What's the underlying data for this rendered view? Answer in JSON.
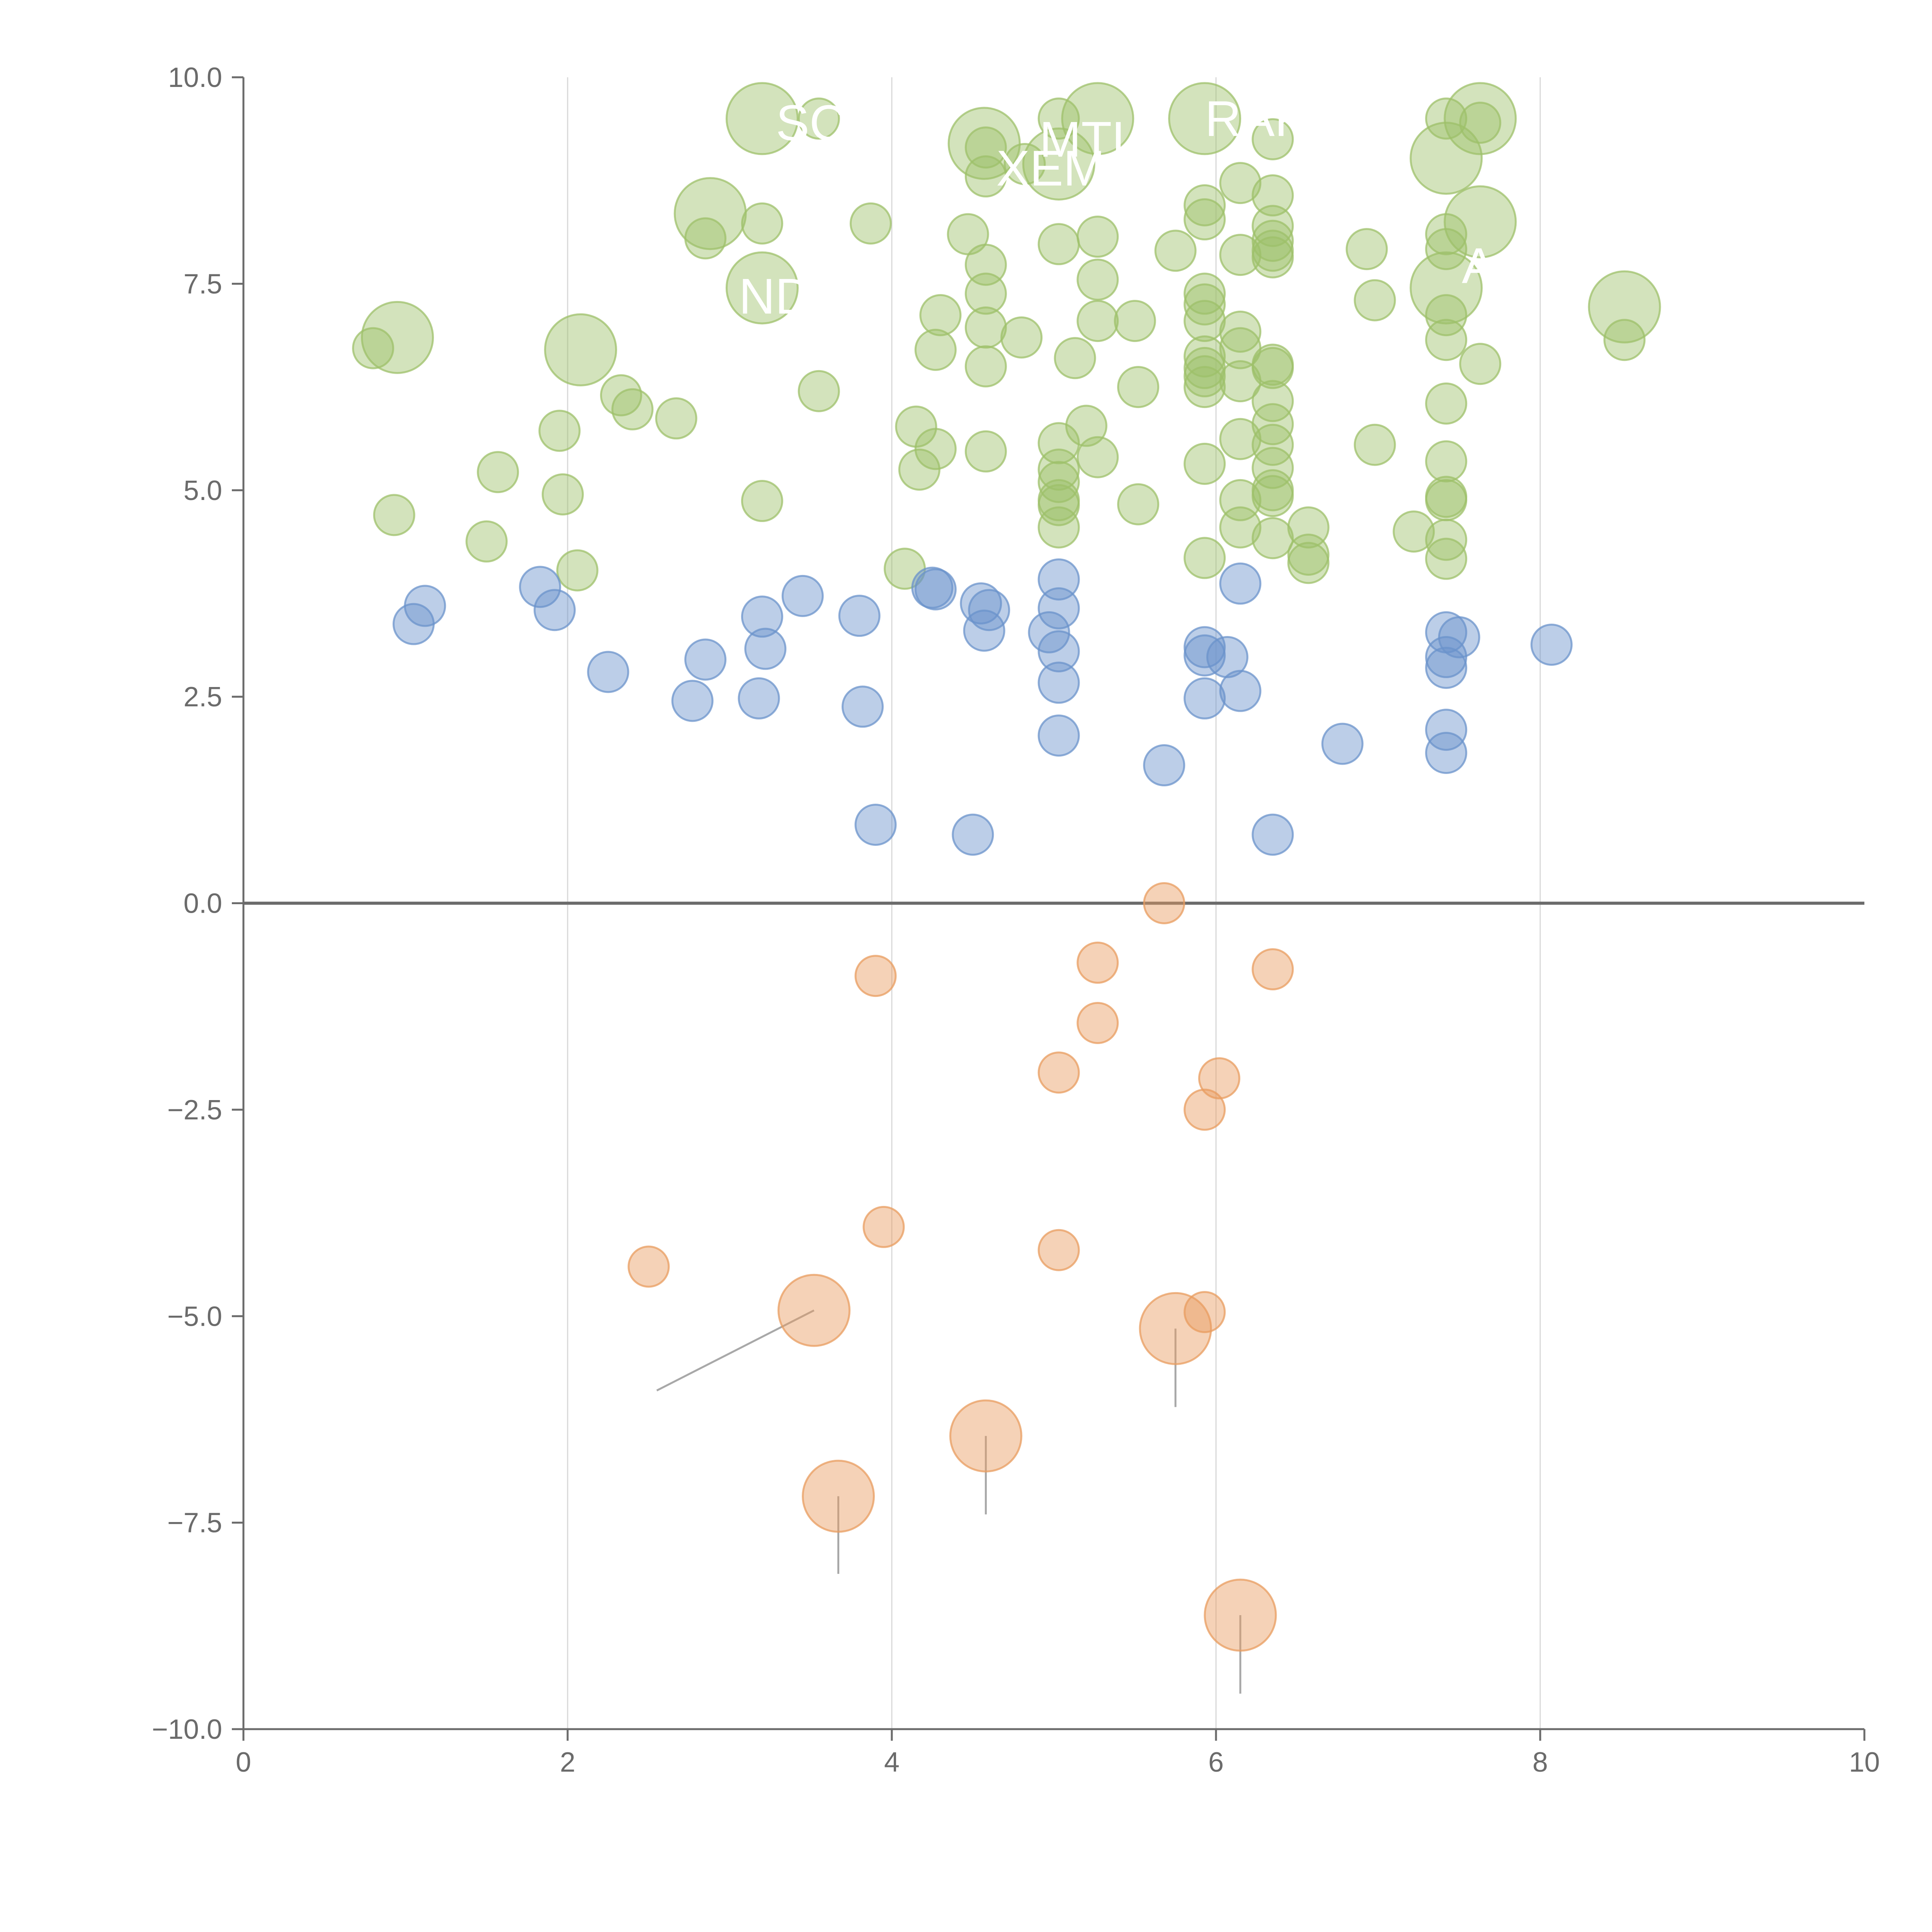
{
  "chart_data": {
    "type": "scatter",
    "title": "",
    "xlabel": "",
    "ylabel": "",
    "xlim": [
      0,
      10
    ],
    "ylim": [
      -10,
      10
    ],
    "x_ticks": [
      0,
      2,
      4,
      6,
      8,
      10
    ],
    "y_ticks": [
      -10.0,
      -7.5,
      -5.0,
      -2.5,
      0.0,
      2.5,
      5.0,
      7.5,
      10.0
    ],
    "x_tick_labels": [
      "0",
      "2",
      "4",
      "6",
      "8",
      "10"
    ],
    "y_tick_labels": [
      "−10.0",
      "−7.5",
      "−5.0",
      "−2.5",
      "0.0",
      "2.5",
      "5.0",
      "7.5",
      "10.0"
    ],
    "vertical_grid": [
      2,
      4,
      6,
      8
    ],
    "horizontal_reference_line": 0,
    "colors": {
      "green": "#9dc06a",
      "blue": "#6b93cb",
      "orange": "#e89c5f",
      "axis": "#6b6b6b",
      "grid": "#d8d8d8"
    },
    "series": [
      {
        "color": "green",
        "points": [
          [
            0.95,
            6.85,
            2
          ],
          [
            0.8,
            6.72,
            1
          ],
          [
            2.08,
            6.7,
            2
          ],
          [
            0.93,
            4.7,
            1
          ],
          [
            1.5,
            4.38,
            1
          ],
          [
            1.57,
            5.22,
            1
          ],
          [
            1.97,
            4.95,
            1
          ],
          [
            1.95,
            5.72,
            1
          ],
          [
            2.06,
            4.03,
            1
          ],
          [
            2.33,
            6.15,
            1
          ],
          [
            2.4,
            5.98,
            1
          ],
          [
            2.67,
            5.87,
            1
          ],
          [
            2.88,
            8.35,
            2
          ],
          [
            2.85,
            8.05,
            1
          ],
          [
            3.2,
            9.5,
            2
          ],
          [
            3.2,
            8.23,
            1
          ],
          [
            3.2,
            7.45,
            2
          ],
          [
            3.2,
            4.87,
            1
          ],
          [
            3.55,
            6.2,
            1
          ],
          [
            3.55,
            9.5,
            1
          ],
          [
            3.87,
            8.23,
            1
          ],
          [
            4.08,
            4.05,
            1
          ],
          [
            4.15,
            5.77,
            1
          ],
          [
            4.17,
            5.25,
            1
          ],
          [
            4.27,
            5.5,
            1
          ],
          [
            4.27,
            6.7,
            1
          ],
          [
            4.3,
            7.12,
            1
          ],
          [
            4.47,
            8.1,
            1
          ],
          [
            4.57,
            9.2,
            2
          ],
          [
            4.58,
            8.8,
            1
          ],
          [
            4.58,
            7.73,
            1
          ],
          [
            4.58,
            7.38,
            1
          ],
          [
            4.58,
            6.97,
            1
          ],
          [
            4.58,
            6.5,
            1
          ],
          [
            4.58,
            5.47,
            1
          ],
          [
            4.58,
            9.15,
            1
          ],
          [
            4.8,
            6.85,
            1
          ],
          [
            4.82,
            8.95,
            1
          ],
          [
            5.03,
            8.95,
            2
          ],
          [
            5.03,
            9.5,
            1
          ],
          [
            5.03,
            7.98,
            1
          ],
          [
            5.03,
            5.57,
            1
          ],
          [
            5.03,
            5.25,
            1
          ],
          [
            5.03,
            5.1,
            1
          ],
          [
            5.03,
            4.88,
            1
          ],
          [
            5.03,
            4.55,
            1
          ],
          [
            5.03,
            4.82,
            1
          ],
          [
            5.13,
            6.6,
            1
          ],
          [
            5.2,
            5.78,
            1
          ],
          [
            5.27,
            9.5,
            2
          ],
          [
            5.27,
            8.07,
            1
          ],
          [
            5.27,
            7.55,
            1
          ],
          [
            5.27,
            7.05,
            1
          ],
          [
            5.27,
            5.4,
            1
          ],
          [
            5.5,
            7.05,
            1
          ],
          [
            5.52,
            6.25,
            1
          ],
          [
            5.52,
            4.83,
            1
          ],
          [
            5.75,
            7.9,
            1
          ],
          [
            5.93,
            9.5,
            2
          ],
          [
            5.93,
            8.45,
            1
          ],
          [
            5.93,
            8.28,
            1
          ],
          [
            5.93,
            7.38,
            1
          ],
          [
            5.93,
            7.25,
            1
          ],
          [
            5.93,
            7.05,
            1
          ],
          [
            5.93,
            6.62,
            1
          ],
          [
            5.93,
            6.48,
            1
          ],
          [
            5.93,
            6.38,
            1
          ],
          [
            5.93,
            6.25,
            1
          ],
          [
            5.93,
            5.32,
            1
          ],
          [
            5.93,
            4.18,
            1
          ],
          [
            6.15,
            8.72,
            1
          ],
          [
            6.15,
            7.85,
            1
          ],
          [
            6.15,
            6.92,
            1
          ],
          [
            6.15,
            6.72,
            1
          ],
          [
            6.15,
            6.32,
            1
          ],
          [
            6.15,
            5.62,
            1
          ],
          [
            6.15,
            4.88,
            1
          ],
          [
            6.15,
            4.55,
            1
          ],
          [
            6.35,
            9.25,
            1
          ],
          [
            6.35,
            8.57,
            1
          ],
          [
            6.35,
            8.2,
            1
          ],
          [
            6.35,
            8.02,
            1
          ],
          [
            6.35,
            7.9,
            1
          ],
          [
            6.35,
            7.82,
            1
          ],
          [
            6.35,
            6.52,
            1
          ],
          [
            6.35,
            6.48,
            1
          ],
          [
            6.35,
            6.08,
            1
          ],
          [
            6.35,
            5.8,
            1
          ],
          [
            6.35,
            5.55,
            1
          ],
          [
            6.35,
            5.27,
            1
          ],
          [
            6.35,
            5.0,
            1
          ],
          [
            6.35,
            4.93,
            1
          ],
          [
            6.35,
            4.42,
            1
          ],
          [
            6.57,
            4.55,
            1
          ],
          [
            6.57,
            4.22,
            1
          ],
          [
            6.57,
            4.12,
            1
          ],
          [
            6.93,
            7.92,
            1
          ],
          [
            6.98,
            7.3,
            1
          ],
          [
            6.98,
            5.55,
            1
          ],
          [
            7.22,
            4.5,
            1
          ],
          [
            7.42,
            9.5,
            1
          ],
          [
            7.42,
            9.02,
            2
          ],
          [
            7.42,
            8.1,
            1
          ],
          [
            7.42,
            7.92,
            1
          ],
          [
            7.42,
            7.45,
            2
          ],
          [
            7.42,
            7.12,
            1
          ],
          [
            7.42,
            6.82,
            1
          ],
          [
            7.42,
            6.05,
            1
          ],
          [
            7.42,
            5.35,
            1
          ],
          [
            7.42,
            4.92,
            1
          ],
          [
            7.42,
            4.88,
            1
          ],
          [
            7.42,
            4.4,
            1
          ],
          [
            7.42,
            4.17,
            1
          ],
          [
            7.63,
            9.5,
            2
          ],
          [
            7.63,
            9.45,
            1
          ],
          [
            7.63,
            8.25,
            2
          ],
          [
            7.63,
            6.53,
            1
          ],
          [
            8.52,
            7.22,
            2
          ],
          [
            8.52,
            6.82,
            1
          ]
        ]
      },
      {
        "color": "blue",
        "points": [
          [
            1.05,
            3.38,
            1
          ],
          [
            1.12,
            3.6,
            1
          ],
          [
            1.83,
            3.83,
            1
          ],
          [
            1.92,
            3.55,
            1
          ],
          [
            2.25,
            2.8,
            1
          ],
          [
            2.77,
            2.45,
            1
          ],
          [
            2.85,
            2.95,
            1
          ],
          [
            3.18,
            2.48,
            1
          ],
          [
            3.2,
            3.47,
            1
          ],
          [
            3.22,
            3.08,
            1
          ],
          [
            3.45,
            3.72,
            1
          ],
          [
            3.8,
            3.48,
            1
          ],
          [
            3.82,
            2.38,
            1
          ],
          [
            3.9,
            0.95,
            1
          ],
          [
            4.25,
            3.82,
            1
          ],
          [
            4.27,
            3.8,
            1
          ],
          [
            4.5,
            0.83,
            1
          ],
          [
            4.55,
            3.63,
            1
          ],
          [
            4.57,
            3.3,
            1
          ],
          [
            4.6,
            3.55,
            1
          ],
          [
            4.97,
            3.28,
            1
          ],
          [
            5.03,
            3.92,
            1
          ],
          [
            5.03,
            3.57,
            1
          ],
          [
            5.03,
            3.05,
            1
          ],
          [
            5.03,
            2.67,
            1
          ],
          [
            5.03,
            2.03,
            1
          ],
          [
            5.68,
            1.67,
            1
          ],
          [
            5.93,
            3.1,
            1
          ],
          [
            5.93,
            3.0,
            1
          ],
          [
            5.93,
            2.48,
            1
          ],
          [
            6.07,
            2.98,
            1
          ],
          [
            6.15,
            3.87,
            1
          ],
          [
            6.15,
            2.57,
            1
          ],
          [
            6.35,
            0.83,
            1
          ],
          [
            6.78,
            1.93,
            1
          ],
          [
            7.42,
            3.28,
            1
          ],
          [
            7.42,
            2.98,
            1
          ],
          [
            7.42,
            2.85,
            1
          ],
          [
            7.42,
            2.1,
            1
          ],
          [
            7.42,
            1.82,
            1
          ],
          [
            7.5,
            3.22,
            1
          ],
          [
            8.07,
            3.13,
            1
          ]
        ]
      },
      {
        "color": "orange",
        "points": [
          [
            2.5,
            -4.4,
            1
          ],
          [
            3.52,
            -4.93,
            2
          ],
          [
            3.67,
            -7.18,
            2
          ],
          [
            3.9,
            -0.88,
            1
          ],
          [
            3.95,
            -3.92,
            1
          ],
          [
            4.58,
            -6.45,
            2
          ],
          [
            5.03,
            -2.05,
            1
          ],
          [
            5.03,
            -4.2,
            1
          ],
          [
            5.27,
            -0.72,
            1
          ],
          [
            5.27,
            -1.45,
            1
          ],
          [
            5.68,
            0.0,
            1
          ],
          [
            5.75,
            -5.15,
            2
          ],
          [
            5.93,
            -2.5,
            1
          ],
          [
            5.93,
            -4.95,
            1
          ],
          [
            6.02,
            -2.12,
            1
          ],
          [
            6.15,
            -8.62,
            2
          ],
          [
            6.35,
            -0.8,
            1
          ]
        ]
      }
    ],
    "annotations": [
      {
        "text": "SC",
        "x": 3.5,
        "y": 9.45
      },
      {
        "text": "RAK",
        "x": 6.25,
        "y": 9.5
      },
      {
        "text": "MTL",
        "x": 5.22,
        "y": 9.25
      },
      {
        "text": "XEM",
        "x": 4.98,
        "y": 8.9
      },
      {
        "text": "ND",
        "x": 3.28,
        "y": 7.35
      },
      {
        "text": "A",
        "x": 7.62,
        "y": 7.72
      }
    ],
    "leader_lines": [
      [
        3.52,
        -4.93,
        2.55,
        -5.9
      ],
      [
        3.67,
        -7.18,
        3.67,
        -8.12
      ],
      [
        4.58,
        -6.45,
        4.58,
        -7.4
      ],
      [
        5.75,
        -5.15,
        5.75,
        -6.1
      ],
      [
        6.15,
        -8.62,
        6.15,
        -9.57
      ]
    ]
  }
}
